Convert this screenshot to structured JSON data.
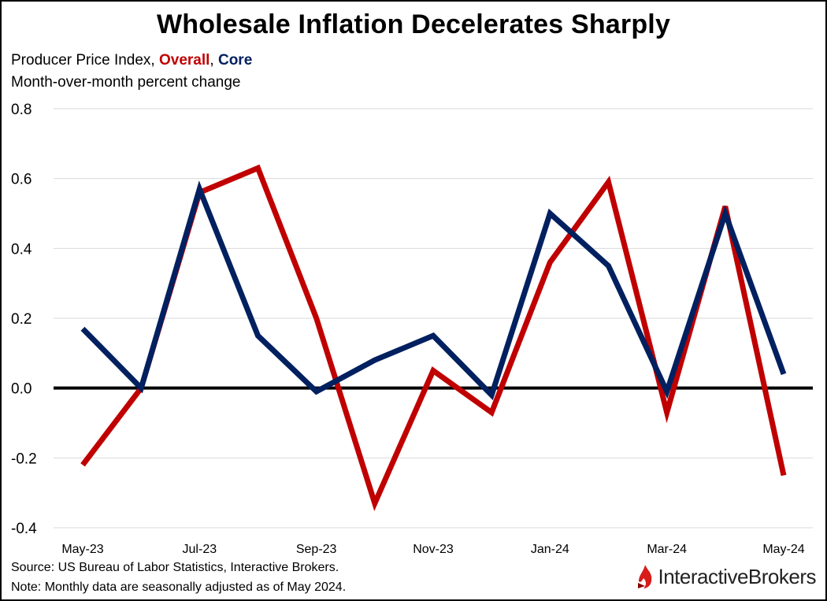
{
  "title": "Wholesale Inflation Decelerates Sharply",
  "subtitle": {
    "prefix": "Producer Price Index, ",
    "overall_label": "Overall",
    "separator": ", ",
    "core_label": "Core",
    "line2": "Month-over-month percent change"
  },
  "source": "Source: US Bureau of Labor Statistics, Interactive Brokers.",
  "note": "Note: Monthly data are seasonally adjusted as of May 2024.",
  "logo": {
    "text": "InteractiveBrokers",
    "icon": "interactive-brokers-flame-icon"
  },
  "colors": {
    "overall": "#C00000",
    "core": "#002060",
    "grid": "#D9D9D9",
    "zero": "#000000"
  },
  "chart_data": {
    "type": "line",
    "title": "Wholesale Inflation Decelerates Sharply",
    "xlabel": "",
    "ylabel": "Month-over-month percent change",
    "x": [
      "May-23",
      "Jun-23",
      "Jul-23",
      "Aug-23",
      "Sep-23",
      "Oct-23",
      "Nov-23",
      "Dec-23",
      "Jan-24",
      "Feb-24",
      "Mar-24",
      "Apr-24",
      "May-24"
    ],
    "x_tick_labels": [
      "May-23",
      "",
      "Jul-23",
      "",
      "Sep-23",
      "",
      "Nov-23",
      "",
      "Jan-24",
      "",
      "Mar-24",
      "",
      "May-24"
    ],
    "ylim": [
      -0.4,
      0.8
    ],
    "yticks": [
      -0.4,
      -0.2,
      0.0,
      0.2,
      0.4,
      0.6,
      0.8
    ],
    "ytick_labels": [
      "-0.4",
      "-0.2",
      "0.0",
      "0.2",
      "0.4",
      "0.6",
      "0.8"
    ],
    "grid": true,
    "series": [
      {
        "name": "Overall",
        "color": "#C00000",
        "values": [
          -0.22,
          0.0,
          0.56,
          0.63,
          0.2,
          -0.33,
          0.05,
          -0.07,
          0.36,
          0.59,
          -0.07,
          0.52,
          -0.25
        ]
      },
      {
        "name": "Core",
        "color": "#002060",
        "values": [
          0.17,
          0.0,
          0.57,
          0.15,
          -0.01,
          0.08,
          0.15,
          -0.02,
          0.5,
          0.35,
          -0.01,
          0.5,
          0.04
        ]
      }
    ]
  }
}
